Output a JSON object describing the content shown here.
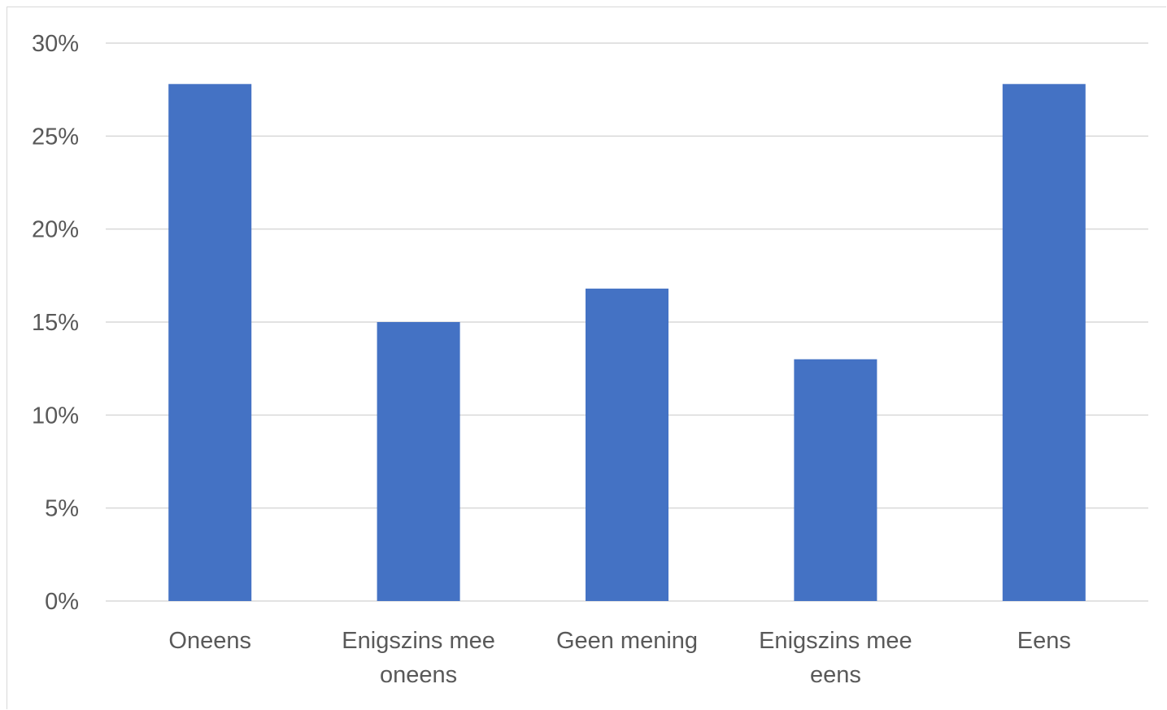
{
  "chart_data": {
    "type": "bar",
    "title": "",
    "xlabel": "",
    "ylabel": "",
    "categories": [
      [
        "Oneens"
      ],
      [
        "Enigszins mee",
        "oneens"
      ],
      [
        "Geen mening"
      ],
      [
        "Enigszins mee",
        "eens"
      ],
      [
        "Eens"
      ]
    ],
    "values": [
      27.8,
      15.0,
      16.8,
      13.0,
      27.8
    ],
    "ylim": [
      0,
      30
    ],
    "yticks": [
      0,
      5,
      10,
      15,
      20,
      25,
      30
    ],
    "ytick_labels": [
      "0%",
      "5%",
      "10%",
      "15%",
      "20%",
      "25%",
      "30%"
    ],
    "grid": true,
    "legend": "none",
    "bar_color": "#4472c4",
    "grid_color": "#d9d9d9"
  }
}
